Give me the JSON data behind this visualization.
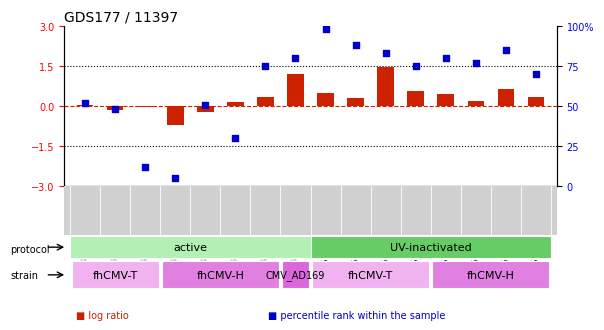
{
  "title": "GDS177 / 11397",
  "samples": [
    "GSM825",
    "GSM827",
    "GSM828",
    "GSM829",
    "GSM830",
    "GSM831",
    "GSM832",
    "GSM833",
    "GSM6822",
    "GSM6823",
    "GSM6824",
    "GSM6825",
    "GSM6818",
    "GSM6819",
    "GSM6820",
    "GSM6821"
  ],
  "log_ratio": [
    0.05,
    -0.15,
    -0.05,
    -0.7,
    -0.2,
    0.15,
    0.35,
    1.2,
    0.5,
    0.3,
    1.45,
    0.55,
    0.45,
    0.2,
    0.65,
    0.35
  ],
  "percentile": [
    52,
    48,
    12,
    5,
    51,
    30,
    75,
    80,
    98,
    88,
    83,
    75,
    80,
    77,
    85,
    70
  ],
  "protocol_groups": [
    {
      "label": "active",
      "start": 0,
      "end": 8,
      "color": "#b3f0b3"
    },
    {
      "label": "UV-inactivated",
      "start": 8,
      "end": 16,
      "color": "#66cc66"
    }
  ],
  "strain_groups": [
    {
      "label": "fhCMV-T",
      "start": 0,
      "end": 3,
      "color": "#f0b3f0"
    },
    {
      "label": "fhCMV-H",
      "start": 3,
      "end": 7,
      "color": "#e080e0"
    },
    {
      "label": "CMV_AD169",
      "start": 7,
      "end": 8,
      "color": "#dd66dd"
    },
    {
      "label": "fhCMV-T",
      "start": 8,
      "end": 12,
      "color": "#f0b3f0"
    },
    {
      "label": "fhCMV-H",
      "start": 12,
      "end": 16,
      "color": "#e080e0"
    }
  ],
  "bar_color": "#cc2200",
  "dot_color": "#0000cc",
  "dashed_color": "#cc2200",
  "ylim_left": [
    -3,
    3
  ],
  "ylim_right": [
    0,
    100
  ],
  "yticks_left": [
    -3,
    -1.5,
    0,
    1.5,
    3
  ],
  "yticks_right": [
    0,
    25,
    50,
    75,
    100
  ],
  "ytick_labels_right": [
    "0",
    "25",
    "50",
    "75",
    "100%"
  ],
  "hline_y": 0,
  "dotline_y": [
    1.5,
    -1.5
  ],
  "legend_items": [
    {
      "label": "log ratio",
      "color": "#cc2200"
    },
    {
      "label": "percentile rank within the sample",
      "color": "#0000cc"
    }
  ]
}
